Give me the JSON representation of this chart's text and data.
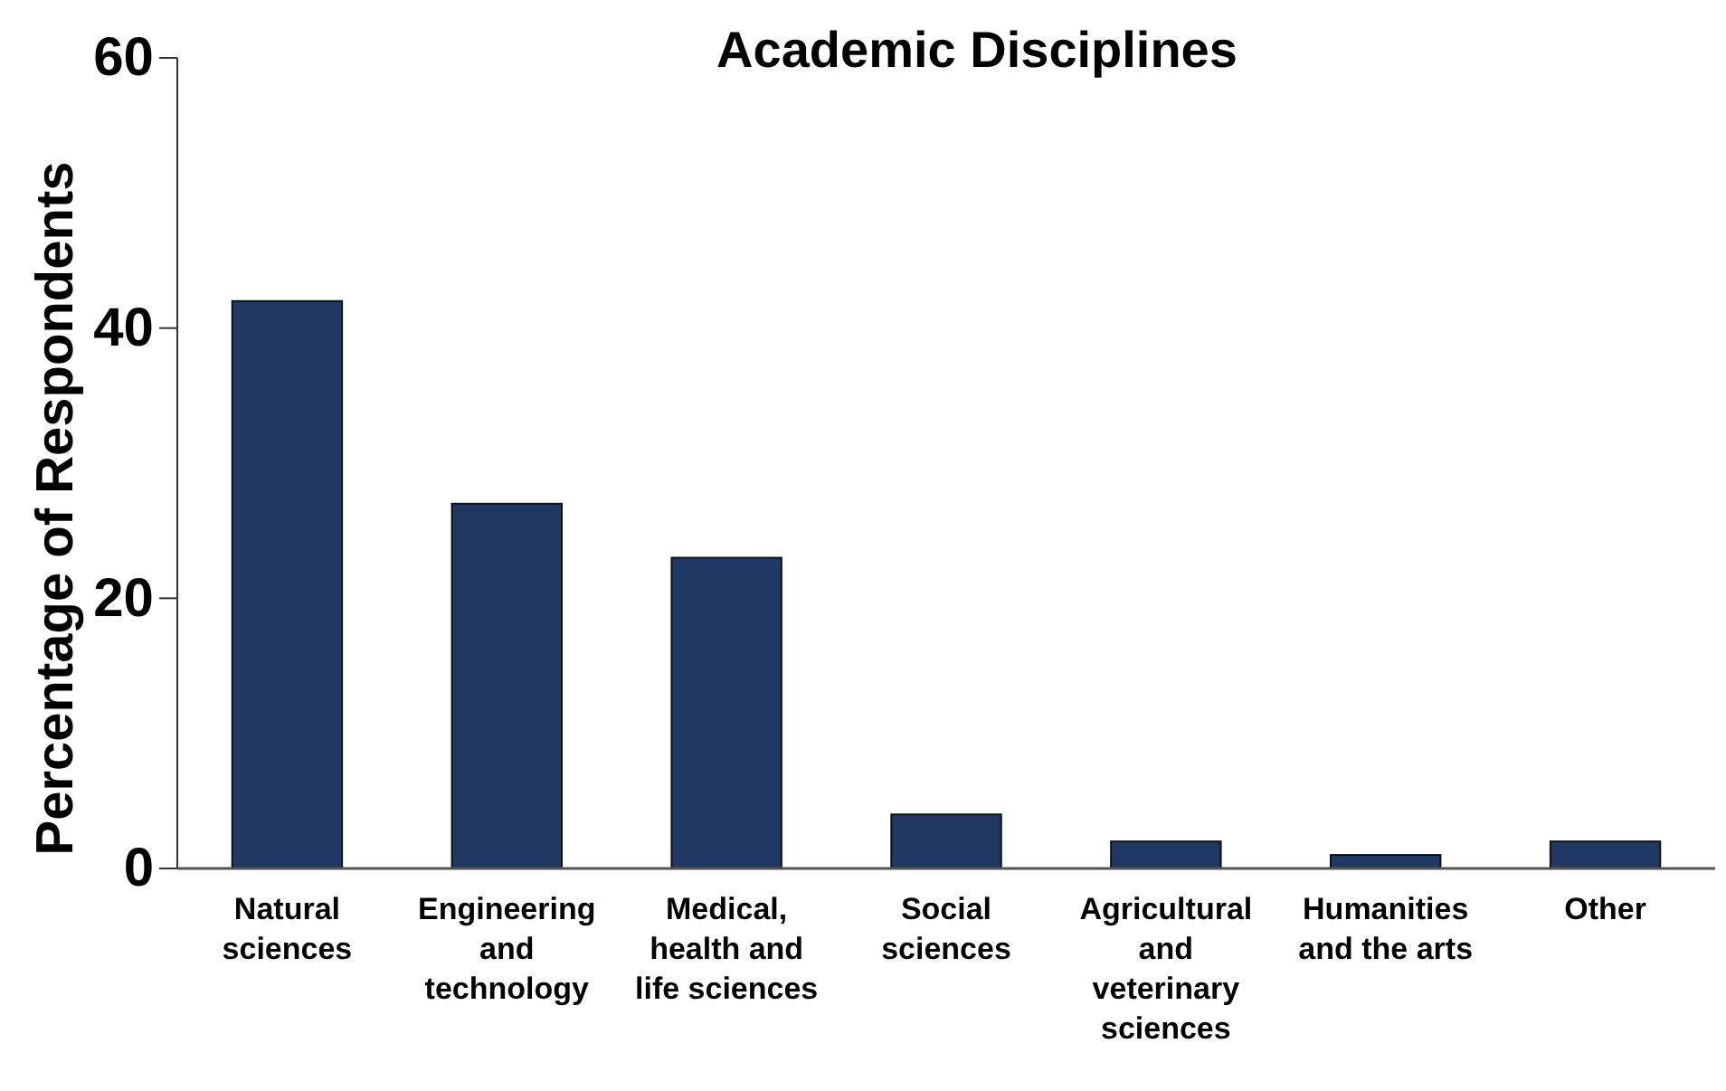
{
  "chart_data": {
    "type": "bar",
    "title": "Academic Disciplines",
    "ylabel": "Percentage of Respondents",
    "categories": [
      "Natural sciences",
      "Engineering and technology",
      "Medical, health and life sciences",
      "Social sciences",
      "Agricultural and veterinary sciences",
      "Humanities and the arts",
      "Other"
    ],
    "values": [
      42,
      27,
      23,
      4,
      2,
      1,
      2
    ],
    "color": "#1f3864",
    "ylim": [
      0,
      60
    ],
    "yticks": [
      0,
      20,
      40,
      60
    ],
    "grid": false
  }
}
